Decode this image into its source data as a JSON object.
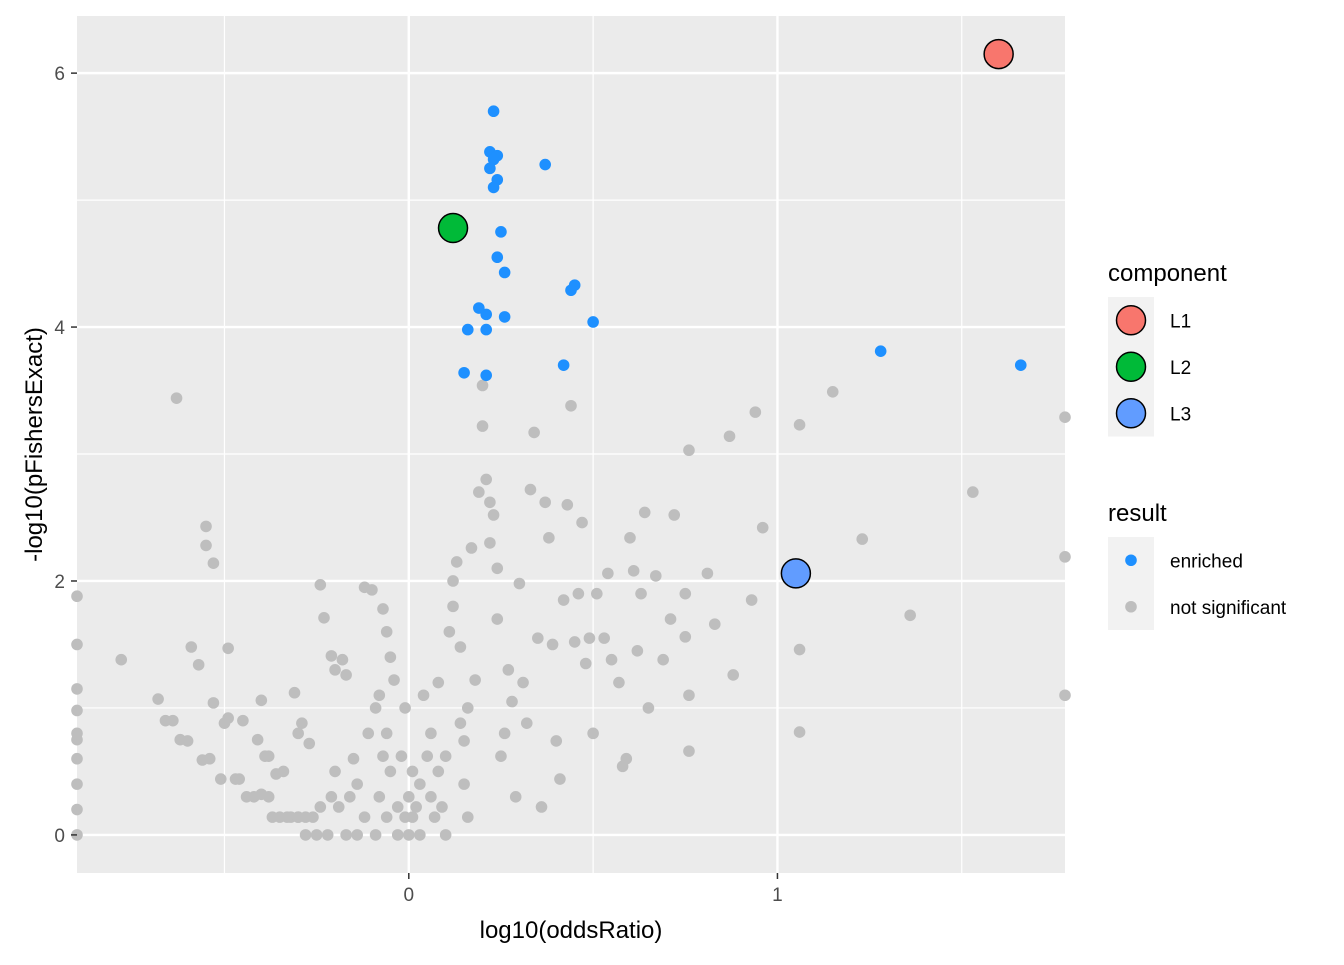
{
  "chart_data": {
    "type": "scatter",
    "xlabel": "log10(oddsRatio)",
    "ylabel": "-log10(pFishersExact)",
    "xlim": [
      -0.9,
      1.78
    ],
    "ylim": [
      -0.3,
      6.45
    ],
    "x_ticks": [
      {
        "value": 0,
        "label": "0"
      },
      {
        "value": 1,
        "label": "1"
      }
    ],
    "x_minor_ticks": [
      -0.5,
      0.5,
      1.5
    ],
    "y_ticks": [
      {
        "value": 0,
        "label": "0"
      },
      {
        "value": 2,
        "label": "2"
      },
      {
        "value": 4,
        "label": "4"
      },
      {
        "value": 6,
        "label": "6"
      }
    ],
    "y_minor_ticks": [
      1,
      3,
      5
    ],
    "grid": true,
    "colors": {
      "panel_background": "#EBEBEB",
      "grid": "#FFFFFF",
      "enriched": "#1E90FF",
      "not_significant": "#BEBEBE",
      "L1": "#F8766D",
      "L2": "#00BA38",
      "L3": "#619CFF"
    },
    "legends": [
      {
        "title": "component",
        "placement": "right",
        "entries": [
          {
            "label": "L1",
            "color": "#F8766D"
          },
          {
            "label": "L2",
            "color": "#00BA38"
          },
          {
            "label": "L3",
            "color": "#619CFF"
          }
        ]
      },
      {
        "title": "result",
        "placement": "right",
        "entries": [
          {
            "label": "enriched",
            "color": "#1E90FF"
          },
          {
            "label": "not significant",
            "color": "#BEBEBE"
          }
        ]
      }
    ],
    "components": [
      {
        "name": "L1",
        "x": 1.6,
        "y": 6.15
      },
      {
        "name": "L2",
        "x": 0.12,
        "y": 4.78
      },
      {
        "name": "L3",
        "x": 1.05,
        "y": 2.06
      }
    ],
    "enriched": [
      [
        0.23,
        5.7
      ],
      [
        0.37,
        5.28
      ],
      [
        0.22,
        5.38
      ],
      [
        0.24,
        5.35
      ],
      [
        0.23,
        5.32
      ],
      [
        0.22,
        5.25
      ],
      [
        0.24,
        5.16
      ],
      [
        0.23,
        5.1
      ],
      [
        0.25,
        4.75
      ],
      [
        0.24,
        4.55
      ],
      [
        0.26,
        4.43
      ],
      [
        0.45,
        4.33
      ],
      [
        0.44,
        4.29
      ],
      [
        0.19,
        4.15
      ],
      [
        0.21,
        4.1
      ],
      [
        0.26,
        4.08
      ],
      [
        0.5,
        4.04
      ],
      [
        0.16,
        3.98
      ],
      [
        0.21,
        3.98
      ],
      [
        0.42,
        3.7
      ],
      [
        0.15,
        3.64
      ],
      [
        0.21,
        3.62
      ],
      [
        1.28,
        3.81
      ],
      [
        1.66,
        3.7
      ]
    ],
    "not_significant": [
      [
        -0.63,
        3.44
      ],
      [
        -0.55,
        2.43
      ],
      [
        -0.55,
        2.28
      ],
      [
        -0.53,
        2.14
      ],
      [
        -0.9,
        1.88
      ],
      [
        -0.9,
        1.5
      ],
      [
        -0.9,
        1.15
      ],
      [
        -0.9,
        0.98
      ],
      [
        -0.9,
        0.8
      ],
      [
        -0.9,
        0.75
      ],
      [
        -0.9,
        0.6
      ],
      [
        -0.9,
        0.4
      ],
      [
        -0.9,
        0.2
      ],
      [
        -0.9,
        0.0
      ],
      [
        -0.78,
        1.38
      ],
      [
        -0.68,
        1.07
      ],
      [
        -0.66,
        0.9
      ],
      [
        -0.64,
        0.9
      ],
      [
        -0.62,
        0.75
      ],
      [
        -0.6,
        0.74
      ],
      [
        -0.59,
        1.48
      ],
      [
        -0.57,
        1.34
      ],
      [
        -0.56,
        0.59
      ],
      [
        -0.54,
        0.6
      ],
      [
        -0.53,
        1.04
      ],
      [
        -0.51,
        0.44
      ],
      [
        -0.5,
        0.88
      ],
      [
        -0.49,
        0.92
      ],
      [
        -0.49,
        1.47
      ],
      [
        -0.47,
        0.44
      ],
      [
        -0.46,
        0.44
      ],
      [
        -0.45,
        0.9
      ],
      [
        -0.44,
        0.3
      ],
      [
        -0.42,
        0.3
      ],
      [
        -0.41,
        0.75
      ],
      [
        -0.4,
        1.06
      ],
      [
        -0.4,
        0.32
      ],
      [
        -0.39,
        0.62
      ],
      [
        -0.38,
        0.3
      ],
      [
        -0.38,
        0.62
      ],
      [
        -0.37,
        0.14
      ],
      [
        -0.36,
        0.48
      ],
      [
        -0.35,
        0.14
      ],
      [
        -0.34,
        0.5
      ],
      [
        -0.33,
        0.14
      ],
      [
        -0.32,
        0.14
      ],
      [
        -0.31,
        1.12
      ],
      [
        -0.3,
        0.14
      ],
      [
        -0.3,
        0.8
      ],
      [
        -0.3,
        0.14
      ],
      [
        -0.29,
        0.88
      ],
      [
        -0.28,
        0.14
      ],
      [
        -0.27,
        0.72
      ],
      [
        -0.26,
        0.14
      ],
      [
        -0.25,
        0.0
      ],
      [
        -0.28,
        0.0
      ],
      [
        -0.24,
        1.97
      ],
      [
        -0.23,
        1.71
      ],
      [
        -0.24,
        0.22
      ],
      [
        -0.22,
        0.0
      ],
      [
        -0.21,
        0.3
      ],
      [
        -0.2,
        0.5
      ],
      [
        -0.19,
        0.22
      ],
      [
        -0.2,
        1.3
      ],
      [
        -0.21,
        1.41
      ],
      [
        -0.18,
        1.38
      ],
      [
        -0.17,
        1.26
      ],
      [
        -0.17,
        0.0
      ],
      [
        -0.16,
        0.3
      ],
      [
        -0.15,
        0.6
      ],
      [
        -0.14,
        0.4
      ],
      [
        -0.14,
        0.0
      ],
      [
        -0.12,
        0.14
      ],
      [
        -0.11,
        0.8
      ],
      [
        -0.12,
        1.95
      ],
      [
        -0.1,
        1.93
      ],
      [
        -0.09,
        1.0
      ],
      [
        -0.09,
        0.0
      ],
      [
        -0.08,
        0.3
      ],
      [
        -0.08,
        1.1
      ],
      [
        -0.07,
        0.62
      ],
      [
        -0.06,
        0.8
      ],
      [
        -0.06,
        0.14
      ],
      [
        -0.05,
        0.5
      ],
      [
        -0.07,
        1.78
      ],
      [
        -0.06,
        1.6
      ],
      [
        -0.05,
        1.4
      ],
      [
        -0.04,
        1.22
      ],
      [
        -0.03,
        0.22
      ],
      [
        -0.03,
        0.0
      ],
      [
        -0.02,
        0.62
      ],
      [
        -0.01,
        0.14
      ],
      [
        -0.01,
        1.0
      ],
      [
        0.0,
        0.3
      ],
      [
        0.0,
        0.0
      ],
      [
        0.01,
        0.14
      ],
      [
        0.01,
        0.5
      ],
      [
        0.02,
        0.22
      ],
      [
        0.03,
        0.0
      ],
      [
        0.03,
        0.4
      ],
      [
        0.04,
        1.1
      ],
      [
        0.05,
        0.62
      ],
      [
        0.06,
        0.3
      ],
      [
        0.06,
        0.8
      ],
      [
        0.07,
        0.14
      ],
      [
        0.08,
        0.5
      ],
      [
        0.08,
        1.2
      ],
      [
        0.09,
        0.22
      ],
      [
        0.1,
        0.62
      ],
      [
        0.1,
        0.0
      ],
      [
        0.11,
        1.6
      ],
      [
        0.12,
        1.8
      ],
      [
        0.13,
        2.15
      ],
      [
        0.12,
        2.0
      ],
      [
        0.14,
        0.88
      ],
      [
        0.14,
        1.48
      ],
      [
        0.15,
        0.4
      ],
      [
        0.15,
        0.74
      ],
      [
        0.16,
        1.0
      ],
      [
        0.16,
        0.14
      ],
      [
        0.17,
        2.26
      ],
      [
        0.18,
        1.22
      ],
      [
        0.19,
        2.7
      ],
      [
        0.2,
        3.54
      ],
      [
        0.2,
        3.22
      ],
      [
        0.21,
        2.8
      ],
      [
        0.22,
        2.62
      ],
      [
        0.23,
        2.52
      ],
      [
        0.22,
        2.3
      ],
      [
        0.24,
        2.1
      ],
      [
        0.24,
        1.7
      ],
      [
        0.25,
        0.62
      ],
      [
        0.26,
        0.8
      ],
      [
        0.27,
        1.3
      ],
      [
        0.28,
        1.05
      ],
      [
        0.29,
        0.3
      ],
      [
        0.3,
        1.98
      ],
      [
        0.31,
        1.2
      ],
      [
        0.32,
        0.88
      ],
      [
        0.33,
        2.72
      ],
      [
        0.34,
        3.17
      ],
      [
        0.35,
        1.55
      ],
      [
        0.36,
        0.22
      ],
      [
        0.37,
        2.62
      ],
      [
        0.38,
        2.34
      ],
      [
        0.39,
        1.5
      ],
      [
        0.4,
        0.74
      ],
      [
        0.41,
        0.44
      ],
      [
        0.42,
        1.85
      ],
      [
        0.43,
        2.6
      ],
      [
        0.44,
        3.38
      ],
      [
        0.45,
        1.52
      ],
      [
        0.46,
        1.9
      ],
      [
        0.47,
        2.46
      ],
      [
        0.48,
        1.35
      ],
      [
        0.49,
        1.55
      ],
      [
        0.5,
        0.8
      ],
      [
        0.51,
        1.9
      ],
      [
        0.53,
        1.55
      ],
      [
        0.54,
        2.06
      ],
      [
        0.55,
        1.38
      ],
      [
        0.57,
        1.2
      ],
      [
        0.58,
        0.54
      ],
      [
        0.59,
        0.6
      ],
      [
        0.6,
        2.34
      ],
      [
        0.61,
        2.08
      ],
      [
        0.62,
        1.45
      ],
      [
        0.63,
        1.9
      ],
      [
        0.64,
        2.54
      ],
      [
        0.65,
        1.0
      ],
      [
        0.67,
        2.04
      ],
      [
        0.69,
        1.38
      ],
      [
        0.71,
        1.7
      ],
      [
        0.72,
        2.52
      ],
      [
        0.75,
        1.9
      ],
      [
        0.75,
        1.56
      ],
      [
        0.76,
        3.03
      ],
      [
        0.76,
        1.1
      ],
      [
        0.76,
        0.66
      ],
      [
        0.81,
        2.06
      ],
      [
        0.83,
        1.66
      ],
      [
        0.87,
        3.14
      ],
      [
        0.88,
        1.26
      ],
      [
        0.94,
        3.33
      ],
      [
        0.93,
        1.85
      ],
      [
        0.96,
        2.42
      ],
      [
        1.06,
        3.23
      ],
      [
        1.06,
        1.46
      ],
      [
        1.06,
        0.81
      ],
      [
        1.15,
        3.49
      ],
      [
        1.23,
        2.33
      ],
      [
        1.36,
        1.73
      ],
      [
        1.53,
        2.7
      ],
      [
        1.78,
        3.29
      ],
      [
        1.78,
        2.19
      ],
      [
        1.78,
        1.1
      ]
    ]
  }
}
